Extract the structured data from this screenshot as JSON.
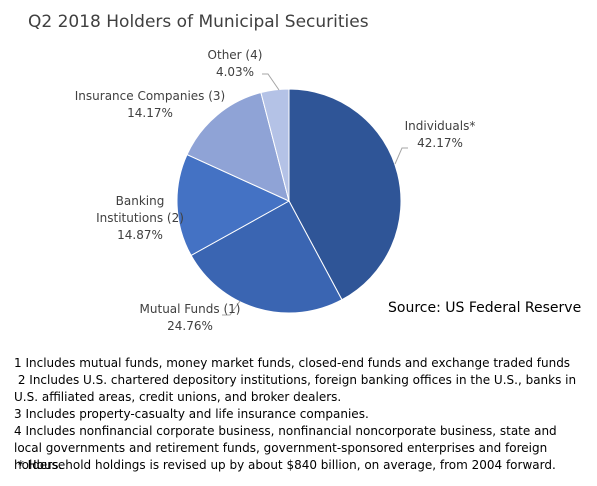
{
  "chart_data": {
    "type": "pie",
    "title": "Q2 2018 Holders of Municipal Securities",
    "categories": [
      "Individuals*",
      "Mutual Funds (1)",
      "Banking Institutions (2)",
      "Insurance Companies (3)",
      "Other (4)"
    ],
    "values": [
      42.17,
      24.76,
      14.87,
      14.17,
      4.03
    ],
    "value_labels": [
      "42.17%",
      "24.76%",
      "14.87%",
      "14.17%",
      "4.03%"
    ],
    "colors": [
      "#2f5597",
      "#3a65b2",
      "#4472c4",
      "#8fa3d6",
      "#b4c2e6"
    ],
    "annotation": "Source: US Federal Reserve",
    "footnotes": [
      "1 Includes mutual funds, money market funds, closed-end funds and exchange traded funds",
      " 2 Includes U.S. chartered depository institutions, foreign banking offices in the U.S., banks in U.S. affiliated areas, credit unions, and broker dealers.",
      "3 Includes property-casualty and life insurance companies.",
      "4 Includes nonfinancial corporate business, nonfinancial noncorporate business, state and local governments and retirement funds, government-sponsored enterprises and foreign holders.",
      " * Household holdings is revised up by about $840 billion, on average, from 2004 forward."
    ]
  }
}
